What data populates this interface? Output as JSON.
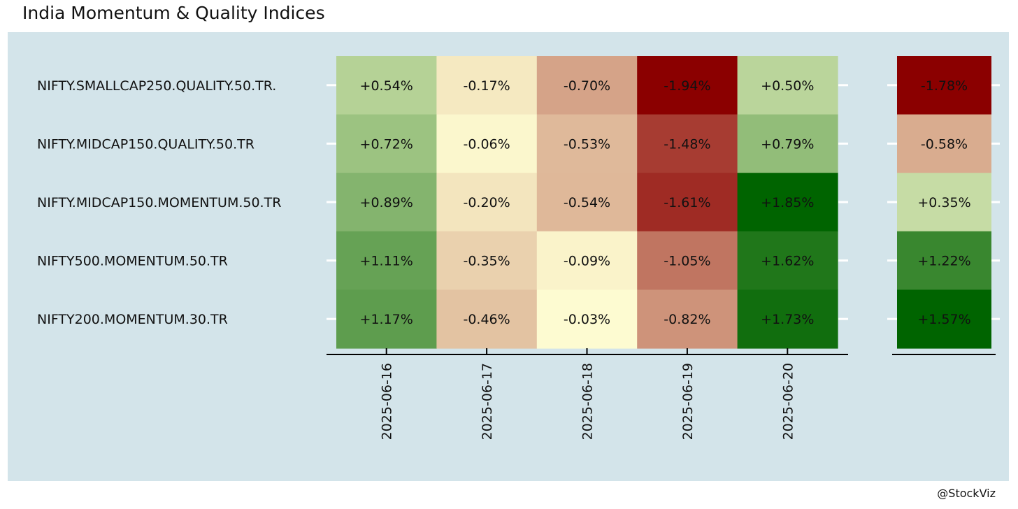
{
  "title": "India Momentum & Quality Indices",
  "credit": "@StockViz",
  "chart_data": {
    "type": "heatmap",
    "title": "India Momentum & Quality Indices",
    "xlabel": "",
    "ylabel": "",
    "color_scale": {
      "negative_max": "#8b0000",
      "neutral": "#ffffd4",
      "positive_max": "#006400"
    },
    "rows": [
      "NIFTY.SMALLCAP250.QUALITY.50.TR.",
      "NIFTY.MIDCAP150.QUALITY.50.TR",
      "NIFTY.MIDCAP150.MOMENTUM.50.TR",
      "NIFTY500.MOMENTUM.50.TR",
      "NIFTY200.MOMENTUM.30.TR"
    ],
    "columns": [
      "2025-06-16",
      "2025-06-17",
      "2025-06-18",
      "2025-06-19",
      "2025-06-20"
    ],
    "values": [
      [
        0.54,
        -0.17,
        -0.7,
        -1.94,
        0.5
      ],
      [
        0.72,
        -0.06,
        -0.53,
        -1.48,
        0.79
      ],
      [
        0.89,
        -0.2,
        -0.54,
        -1.61,
        1.85
      ],
      [
        1.11,
        -0.35,
        -0.09,
        -1.05,
        1.62
      ],
      [
        1.17,
        -0.46,
        -0.03,
        -0.82,
        1.73
      ]
    ],
    "labels": [
      [
        "+0.54%",
        "-0.17%",
        "-0.70%",
        "-1.94%",
        "+0.50%"
      ],
      [
        "+0.72%",
        "-0.06%",
        "-0.53%",
        "-1.48%",
        "+0.79%"
      ],
      [
        "+0.89%",
        "-0.20%",
        "-0.54%",
        "-1.61%",
        "+1.85%"
      ],
      [
        "+1.11%",
        "-0.35%",
        "-0.09%",
        "-1.05%",
        "+1.62%"
      ],
      [
        "+1.17%",
        "-0.46%",
        "-0.03%",
        "-0.82%",
        "+1.73%"
      ]
    ],
    "summary": {
      "values": [
        -1.78,
        -0.58,
        0.35,
        1.22,
        1.57
      ],
      "labels": [
        "-1.78%",
        "-0.58%",
        "+0.35%",
        "+1.22%",
        "+1.57%"
      ],
      "color_scale": {
        "negative_max": "#8b0000",
        "neutral": "#ffffd4",
        "positive_max": "#006400"
      }
    }
  }
}
